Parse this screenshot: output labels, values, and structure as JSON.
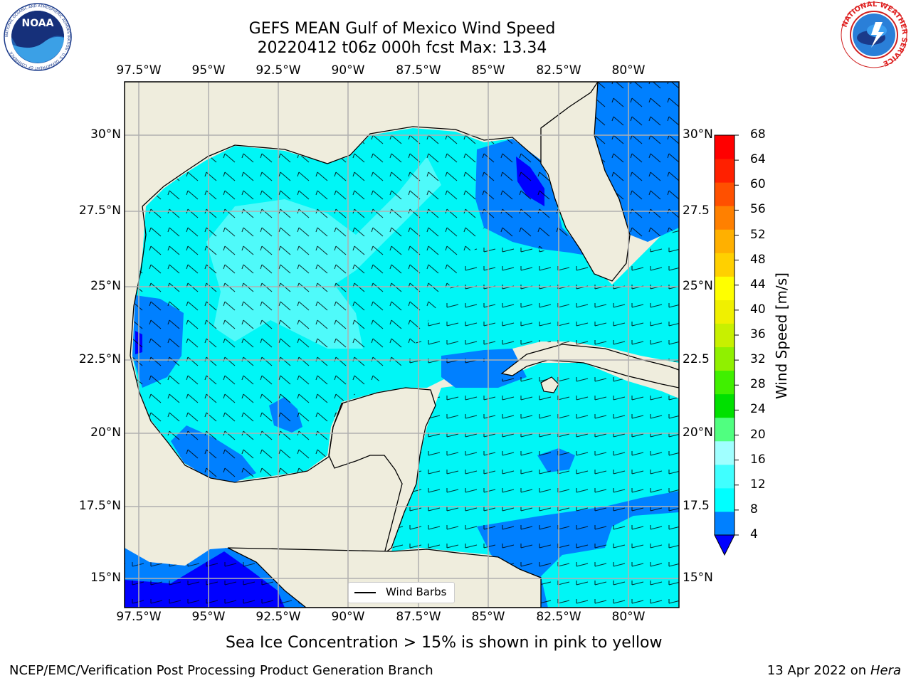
{
  "title_line1": "GEFS MEAN Gulf of Mexico Wind Speed",
  "title_line2": "20220412 t06z 000h fcst   Max: 13.34",
  "logos": {
    "noaa": {
      "text": "NOAA",
      "ring": "NATIONAL OCEANIC AND ATMOSPHERIC ADMINISTRATION · U.S. DEPARTMENT OF COMMERCE"
    },
    "nws": {
      "ring": "NATIONAL WEATHER SERVICE"
    }
  },
  "lon_ticks_top": [
    "97.5°W",
    "95°W",
    "92.5°W",
    "90°W",
    "87.5°W",
    "85°W",
    "82.5°W",
    "80°W"
  ],
  "lon_ticks_bottom": [
    "97.5°W",
    "95°W",
    "92.5°W",
    "90°W",
    "87.5°W",
    "85°W",
    "82.5°W",
    "80°W"
  ],
  "lat_ticks_left": [
    "30°N",
    "27.5°N",
    "25°N",
    "22.5°N",
    "20°N",
    "17.5°N",
    "15°N"
  ],
  "lat_ticks_right": [
    "30°N",
    "27.5",
    "25°N",
    "22.5",
    "20°N",
    "17.5",
    "15°N"
  ],
  "legend_label": "Wind Barbs",
  "colorbar": {
    "label": "Wind Speed [m/s]",
    "ticks": [
      "68",
      "64",
      "60",
      "56",
      "52",
      "48",
      "44",
      "40",
      "36",
      "32",
      "28",
      "24",
      "20",
      "16",
      "12",
      "8",
      "4"
    ],
    "colors": [
      "#0000ff",
      "#0080ff",
      "#00ffff",
      "#40ffff",
      "#a0ffff",
      "#50ff80",
      "#00e000",
      "#40f000",
      "#90f000",
      "#c8f000",
      "#f0f000",
      "#ffff00",
      "#ffd000",
      "#ffb000",
      "#ff8000",
      "#ff5000",
      "#ff2000",
      "#ff0000"
    ]
  },
  "caption": "Sea Ice Concentration > 15% is shown in pink to yellow",
  "footer_left": "NCEP/EMC/Verification Post Processing Product Generation Branch",
  "footer_right_date": "13 Apr 2022 on ",
  "footer_right_host": "Hera"
}
